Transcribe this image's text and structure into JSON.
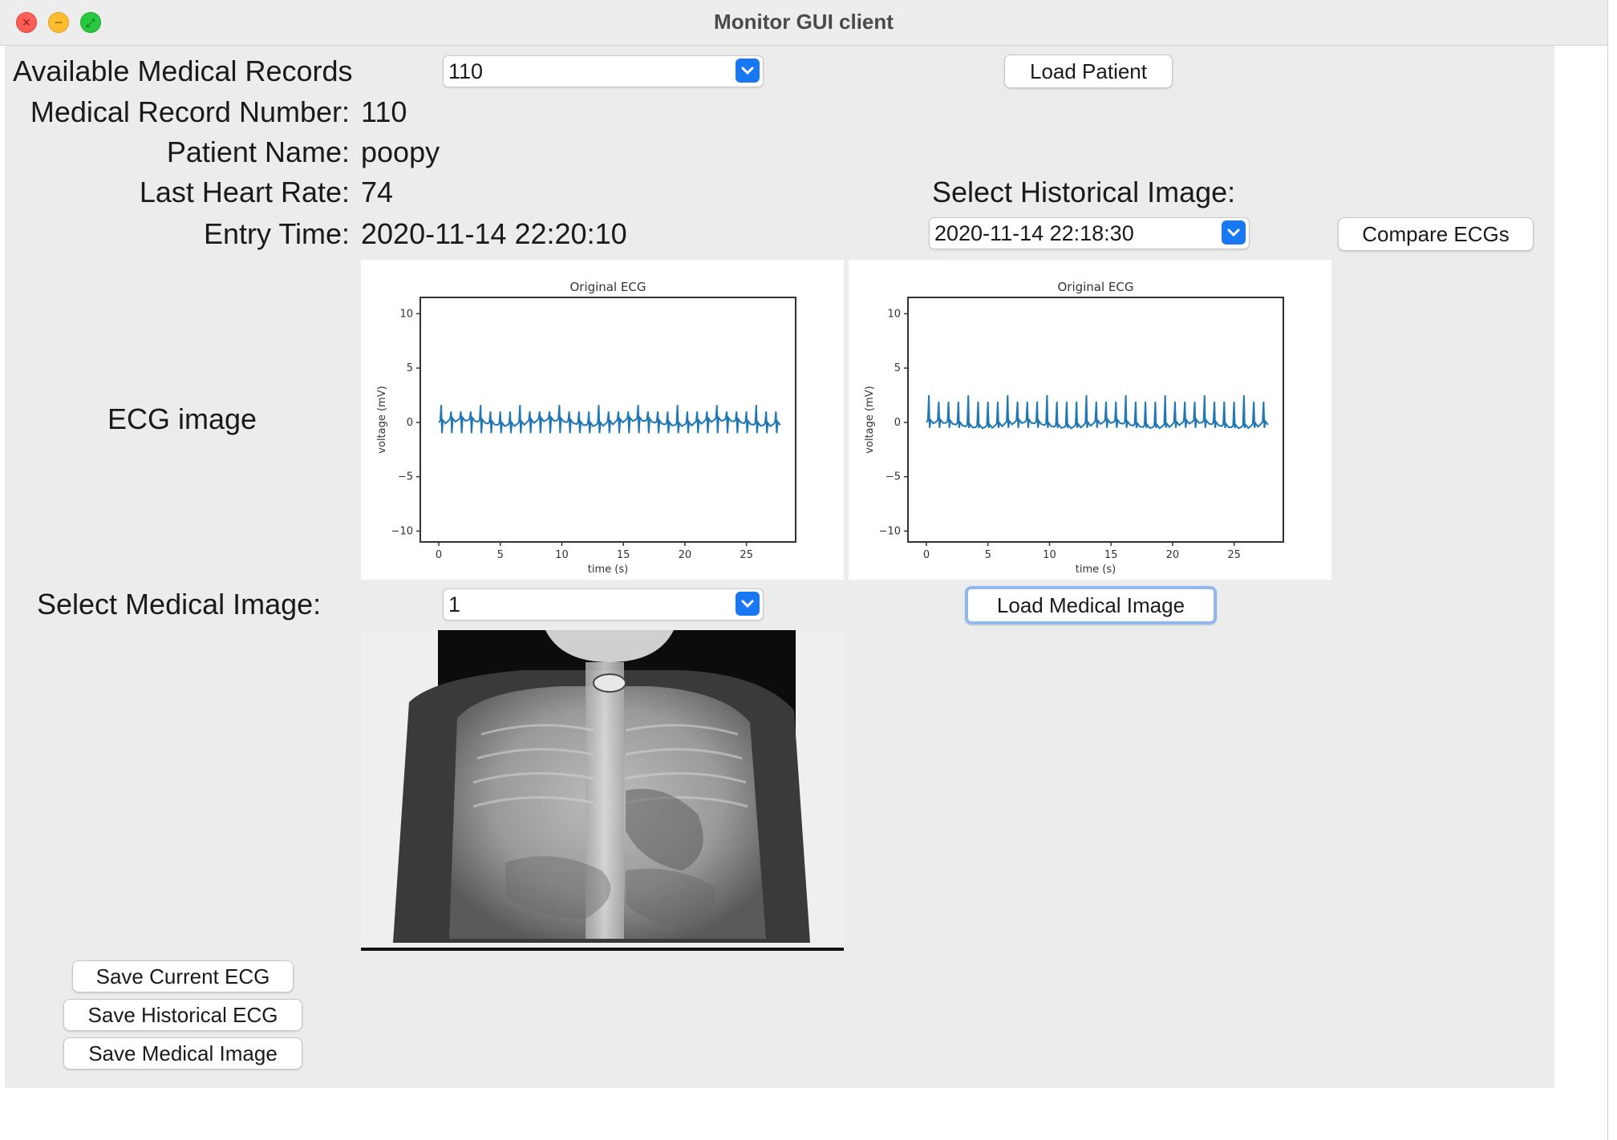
{
  "window": {
    "title": "Monitor GUI client"
  },
  "records": {
    "available_label": "Available Medical Records",
    "selected": "110",
    "load_button": "Load Patient"
  },
  "patient": {
    "mrn_label": "Medical Record Number:",
    "mrn_value": "110",
    "name_label": "Patient Name:",
    "name_value": "poopy",
    "hr_label": "Last Heart Rate:",
    "hr_value": "74",
    "time_label": "Entry Time:",
    "time_value": "2020-11-14 22:20:10"
  },
  "historical": {
    "label": "Select Historical Image:",
    "selected": "2020-11-14 22:18:30",
    "compare_button": "Compare ECGs"
  },
  "ecg_label": "ECG image",
  "medical": {
    "label": "Select Medical Image:",
    "selected": "1",
    "load_button": "Load Medical Image"
  },
  "save_buttons": {
    "current": "Save Current ECG",
    "historical": "Save Historical ECG",
    "medical": "Save Medical Image"
  },
  "chart_data": [
    {
      "type": "line",
      "title": "Original ECG",
      "xlabel": "time (s)",
      "ylabel": "voltage (mV)",
      "xlim": [
        -1.5,
        29
      ],
      "ylim": [
        -11,
        11.5
      ],
      "xticks": [
        0,
        5,
        10,
        15,
        20,
        25
      ],
      "yticks": [
        -10,
        -5,
        0,
        5,
        10
      ],
      "color": "#1f77b4",
      "series": [
        {
          "beat_period_s": 0.8,
          "start_s": 0.0,
          "end_s": 27.8,
          "baseline_mV": 0,
          "r_peak_mV": 1.0,
          "s_trough_mV": -1.0
        }
      ]
    },
    {
      "type": "line",
      "title": "Original ECG",
      "xlabel": "time (s)",
      "ylabel": "voltage (mV)",
      "xlim": [
        -1.5,
        29
      ],
      "ylim": [
        -11,
        11.5
      ],
      "xticks": [
        0,
        5,
        10,
        15,
        20,
        25
      ],
      "yticks": [
        -10,
        -5,
        0,
        5,
        10
      ],
      "color": "#1f77b4",
      "series": [
        {
          "beat_period_s": 0.8,
          "start_s": 0.0,
          "end_s": 27.8,
          "baseline_mV": -0.2,
          "r_peak_mV": 1.9,
          "s_trough_mV": -0.5
        }
      ]
    }
  ]
}
